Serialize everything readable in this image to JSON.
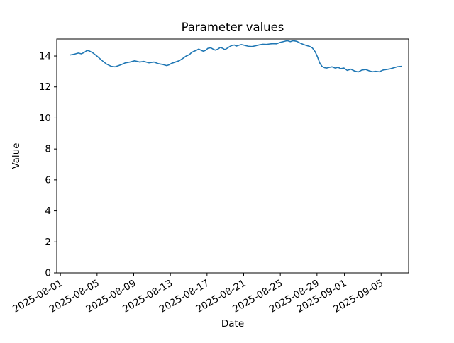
{
  "figure": {
    "background_color": "#ffffff",
    "spine_color": "#000000",
    "text_color": "#000000"
  },
  "chart_data": {
    "type": "line",
    "title": "Parameter values",
    "xlabel": "Date",
    "ylabel": "Value",
    "grid": false,
    "legend": null,
    "x_unit": "days since 2025-08-02",
    "xlim_days": [
      -1.4,
      37.0
    ],
    "ylim": [
      0,
      15.1
    ],
    "y_ticks": [
      0,
      2,
      4,
      6,
      8,
      10,
      12,
      14
    ],
    "x_ticks": [
      {
        "day": -1,
        "label": "2025-08-01"
      },
      {
        "day": 3,
        "label": "2025-08-05"
      },
      {
        "day": 7,
        "label": "2025-08-09"
      },
      {
        "day": 11,
        "label": "2025-08-13"
      },
      {
        "day": 15,
        "label": "2025-08-17"
      },
      {
        "day": 19,
        "label": "2025-08-21"
      },
      {
        "day": 23,
        "label": "2025-08-25"
      },
      {
        "day": 27,
        "label": "2025-08-29"
      },
      {
        "day": 30,
        "label": "2025-09-01"
      },
      {
        "day": 34,
        "label": "2025-09-05"
      }
    ],
    "series": [
      {
        "name": "Parameter value",
        "color": "#1f77b4",
        "points": [
          [
            0.1,
            14.07
          ],
          [
            0.55,
            14.12
          ],
          [
            0.95,
            14.19
          ],
          [
            1.3,
            14.14
          ],
          [
            1.65,
            14.25
          ],
          [
            1.9,
            14.36
          ],
          [
            2.1,
            14.34
          ],
          [
            2.5,
            14.22
          ],
          [
            3.0,
            13.99
          ],
          [
            3.5,
            13.73
          ],
          [
            4.0,
            13.49
          ],
          [
            4.55,
            13.33
          ],
          [
            4.95,
            13.3
          ],
          [
            5.4,
            13.39
          ],
          [
            5.8,
            13.48
          ],
          [
            6.1,
            13.56
          ],
          [
            6.6,
            13.61
          ],
          [
            7.1,
            13.69
          ],
          [
            7.65,
            13.61
          ],
          [
            8.1,
            13.65
          ],
          [
            8.65,
            13.56
          ],
          [
            9.2,
            13.61
          ],
          [
            9.7,
            13.5
          ],
          [
            10.2,
            13.45
          ],
          [
            10.6,
            13.38
          ],
          [
            10.85,
            13.43
          ],
          [
            11.15,
            13.53
          ],
          [
            11.55,
            13.61
          ],
          [
            11.95,
            13.69
          ],
          [
            12.35,
            13.84
          ],
          [
            12.7,
            13.99
          ],
          [
            13.1,
            14.1
          ],
          [
            13.3,
            14.22
          ],
          [
            13.55,
            14.3
          ],
          [
            13.85,
            14.37
          ],
          [
            14.1,
            14.45
          ],
          [
            14.35,
            14.37
          ],
          [
            14.6,
            14.31
          ],
          [
            14.85,
            14.37
          ],
          [
            15.1,
            14.5
          ],
          [
            15.4,
            14.53
          ],
          [
            15.65,
            14.45
          ],
          [
            15.9,
            14.38
          ],
          [
            16.2,
            14.45
          ],
          [
            16.45,
            14.56
          ],
          [
            16.7,
            14.5
          ],
          [
            16.95,
            14.41
          ],
          [
            17.2,
            14.5
          ],
          [
            17.45,
            14.6
          ],
          [
            17.7,
            14.68
          ],
          [
            18.0,
            14.71
          ],
          [
            18.2,
            14.64
          ],
          [
            18.5,
            14.7
          ],
          [
            18.75,
            14.74
          ],
          [
            19.1,
            14.69
          ],
          [
            19.5,
            14.63
          ],
          [
            19.9,
            14.61
          ],
          [
            20.3,
            14.66
          ],
          [
            20.7,
            14.72
          ],
          [
            21.1,
            14.76
          ],
          [
            21.5,
            14.75
          ],
          [
            21.85,
            14.78
          ],
          [
            22.2,
            14.8
          ],
          [
            22.6,
            14.79
          ],
          [
            23.0,
            14.88
          ],
          [
            23.4,
            14.94
          ],
          [
            23.75,
            14.99
          ],
          [
            24.1,
            14.93
          ],
          [
            24.4,
            14.99
          ],
          [
            24.8,
            14.95
          ],
          [
            25.15,
            14.84
          ],
          [
            25.55,
            14.74
          ],
          [
            25.9,
            14.67
          ],
          [
            26.2,
            14.62
          ],
          [
            26.5,
            14.52
          ],
          [
            26.8,
            14.28
          ],
          [
            27.05,
            13.95
          ],
          [
            27.3,
            13.55
          ],
          [
            27.55,
            13.33
          ],
          [
            27.8,
            13.25
          ],
          [
            28.05,
            13.22
          ],
          [
            28.3,
            13.26
          ],
          [
            28.65,
            13.3
          ],
          [
            29.0,
            13.22
          ],
          [
            29.3,
            13.27
          ],
          [
            29.6,
            13.18
          ],
          [
            29.95,
            13.22
          ],
          [
            30.3,
            13.07
          ],
          [
            30.7,
            13.15
          ],
          [
            31.1,
            13.03
          ],
          [
            31.5,
            12.97
          ],
          [
            31.9,
            13.09
          ],
          [
            32.3,
            13.13
          ],
          [
            32.7,
            13.04
          ],
          [
            33.05,
            12.98
          ],
          [
            33.4,
            13.01
          ],
          [
            33.8,
            12.98
          ],
          [
            34.2,
            13.09
          ],
          [
            34.6,
            13.13
          ],
          [
            35.0,
            13.17
          ],
          [
            35.4,
            13.24
          ],
          [
            35.8,
            13.31
          ],
          [
            36.2,
            13.33
          ]
        ]
      }
    ]
  }
}
